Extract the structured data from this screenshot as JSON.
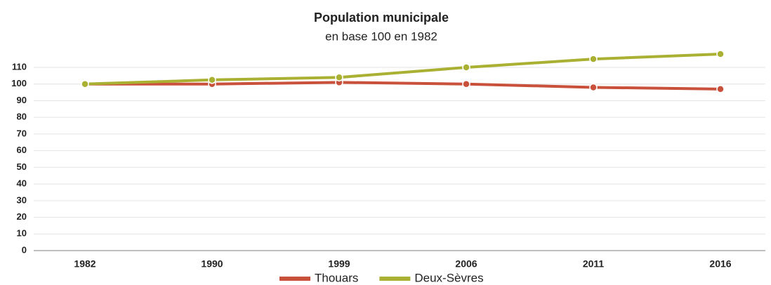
{
  "chart_data": {
    "type": "line",
    "title": "Population municipale",
    "subtitle": "en base 100 en 1982",
    "categories": [
      "1982",
      "1990",
      "1999",
      "2006",
      "2011",
      "2016"
    ],
    "series": [
      {
        "name": "Thouars",
        "color": "#c9503a",
        "values": [
          100,
          100,
          101,
          100,
          98,
          97
        ]
      },
      {
        "name": "Deux-Sèvres",
        "color": "#a9b032",
        "values": [
          100,
          102.5,
          104,
          110,
          115,
          118
        ]
      }
    ],
    "ylim": [
      0,
      110
    ],
    "yticks": [
      0,
      10,
      20,
      30,
      40,
      50,
      60,
      70,
      80,
      90,
      100,
      110
    ],
    "grid": true
  }
}
